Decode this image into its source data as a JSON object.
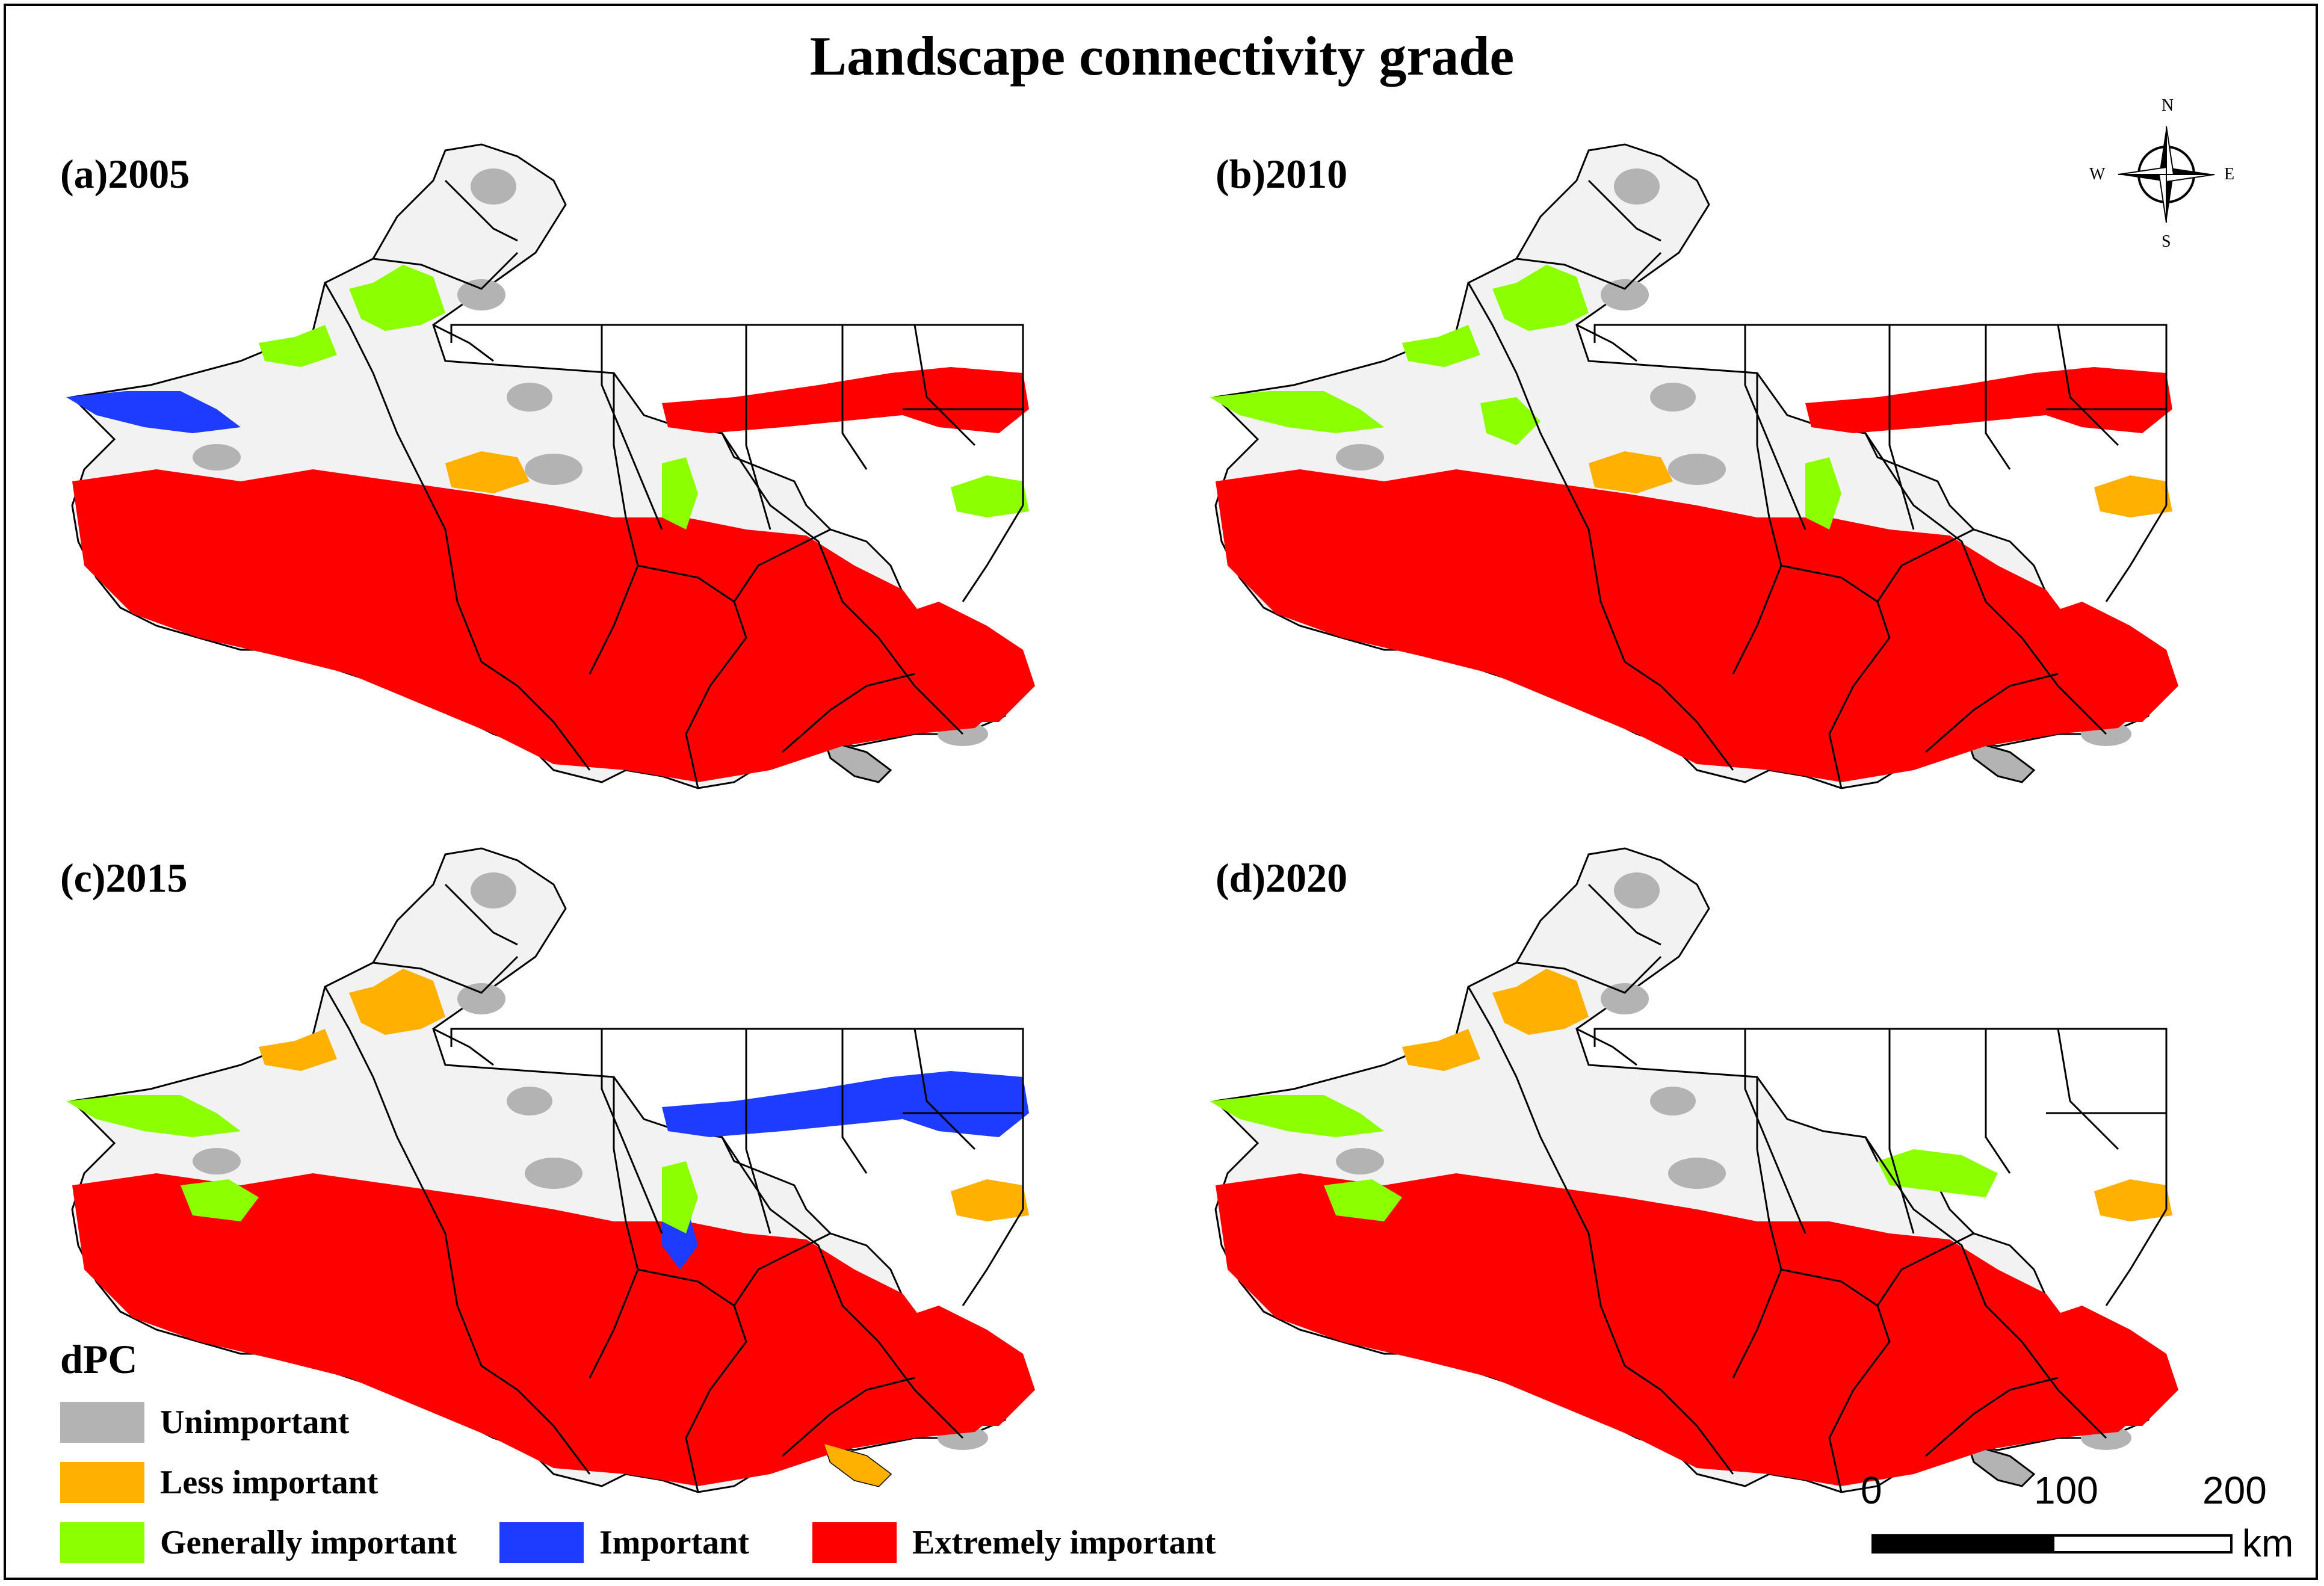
{
  "title": "Landscape connectivity grade",
  "panels": [
    {
      "label": "(a)2005",
      "patches": {
        "generally": [
          "NW",
          "N1",
          "C2",
          "E2"
        ],
        "important": [
          "W"
        ],
        "less": [
          "C1"
        ],
        "extreme": [
          "belt",
          "east",
          "ne"
        ]
      }
    },
    {
      "label": "(b)2010",
      "patches": {
        "generally": [
          "NW",
          "N1",
          "W",
          "N2",
          "C2"
        ],
        "important": [],
        "less": [
          "C1",
          "E2"
        ],
        "extreme": [
          "belt",
          "east",
          "ne"
        ]
      }
    },
    {
      "label": "(c)2015",
      "patches": {
        "generally": [
          "W",
          "W2",
          "C2"
        ],
        "important": [
          "ne",
          "C3"
        ],
        "less": [
          "NW",
          "N1",
          "E2",
          "tail"
        ],
        "extreme": [
          "belt",
          "east"
        ]
      }
    },
    {
      "label": "(d)2020",
      "patches": {
        "generally": [
          "W",
          "W2",
          "N3"
        ],
        "important": [],
        "less": [
          "NW",
          "N1",
          "E2"
        ],
        "extreme": [
          "belt",
          "east"
        ]
      }
    }
  ],
  "legend": {
    "title": "dPC",
    "items": [
      {
        "label": "Unimportant",
        "color": "#b3b3b3"
      },
      {
        "label": "Less important",
        "color": "#ffb000"
      },
      {
        "label": "Generally important",
        "color": "#8cff00"
      },
      {
        "label": "Important",
        "color": "#1e3cff"
      },
      {
        "label": "Extremely important",
        "color": "#ff0000"
      }
    ]
  },
  "compass": {
    "n": "N",
    "s": "S",
    "e": "E",
    "w": "W"
  },
  "scalebar": {
    "ticks": [
      "0",
      "100",
      "200"
    ],
    "unit": "km"
  }
}
